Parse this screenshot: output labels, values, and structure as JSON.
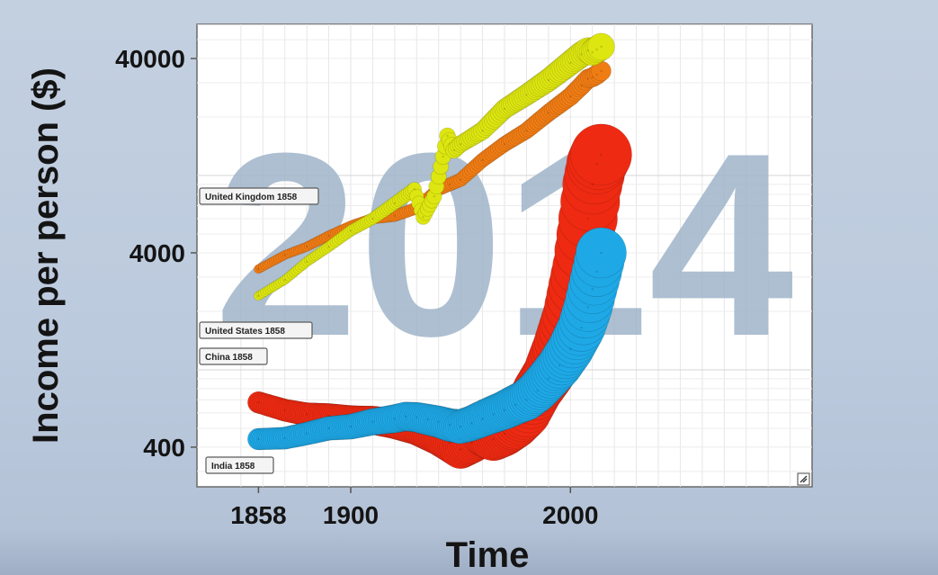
{
  "chart_data": {
    "type": "scatter",
    "title": "",
    "xlabel": "Time",
    "ylabel": "Income per person ($)",
    "yscale": "log",
    "xlim": [
      1830,
      2110
    ],
    "ylim": [
      250,
      60000
    ],
    "x_ticks": [
      {
        "value": 1858,
        "label": "1858"
      },
      {
        "value": 1900,
        "label": "1900"
      },
      {
        "value": 2000,
        "label": "2000"
      }
    ],
    "y_ticks": [
      {
        "value": 400,
        "label": "400"
      },
      {
        "value": 4000,
        "label": "4000"
      },
      {
        "value": 40000,
        "label": "40000"
      }
    ],
    "grid": true,
    "watermark_year": "2014",
    "series": [
      {
        "name": "China",
        "color": "#ee2a12",
        "start_label": "China 1858",
        "points": [
          [
            1858,
            680
          ],
          [
            1870,
            620
          ],
          [
            1880,
            590
          ],
          [
            1890,
            580
          ],
          [
            1900,
            560
          ],
          [
            1910,
            550
          ],
          [
            1920,
            530
          ],
          [
            1930,
            500
          ],
          [
            1940,
            450
          ],
          [
            1945,
            420
          ],
          [
            1950,
            390
          ],
          [
            1955,
            420
          ],
          [
            1960,
            460
          ],
          [
            1965,
            440
          ],
          [
            1970,
            470
          ],
          [
            1975,
            520
          ],
          [
            1980,
            600
          ],
          [
            1985,
            780
          ],
          [
            1990,
            950
          ],
          [
            1995,
            1300
          ],
          [
            2000,
            1900
          ],
          [
            2005,
            3400
          ],
          [
            2008,
            6000
          ],
          [
            2010,
            9000
          ],
          [
            2012,
            11500
          ],
          [
            2014,
            12800
          ]
        ]
      },
      {
        "name": "India",
        "color": "#1ea8e6",
        "start_label": "India 1858",
        "points": [
          [
            1858,
            440
          ],
          [
            1870,
            445
          ],
          [
            1880,
            470
          ],
          [
            1890,
            500
          ],
          [
            1900,
            510
          ],
          [
            1910,
            540
          ],
          [
            1920,
            560
          ],
          [
            1925,
            575
          ],
          [
            1930,
            570
          ],
          [
            1935,
            555
          ],
          [
            1940,
            540
          ],
          [
            1945,
            520
          ],
          [
            1950,
            510
          ],
          [
            1955,
            530
          ],
          [
            1960,
            560
          ],
          [
            1965,
            590
          ],
          [
            1970,
            620
          ],
          [
            1975,
            660
          ],
          [
            1980,
            700
          ],
          [
            1985,
            780
          ],
          [
            1990,
            900
          ],
          [
            1995,
            1050
          ],
          [
            2000,
            1280
          ],
          [
            2005,
            1650
          ],
          [
            2008,
            2100
          ],
          [
            2010,
            2600
          ],
          [
            2012,
            3200
          ],
          [
            2014,
            4000
          ]
        ]
      },
      {
        "name": "United Kingdom",
        "color": "#f07c14",
        "start_label": "United Kingdom 1858",
        "points": [
          [
            1858,
            3300
          ],
          [
            1870,
            3900
          ],
          [
            1880,
            4300
          ],
          [
            1890,
            4900
          ],
          [
            1900,
            5500
          ],
          [
            1910,
            6000
          ],
          [
            1920,
            6200
          ],
          [
            1930,
            6800
          ],
          [
            1940,
            8500
          ],
          [
            1945,
            9000
          ],
          [
            1950,
            9500
          ],
          [
            1960,
            12000
          ],
          [
            1970,
            14500
          ],
          [
            1980,
            17000
          ],
          [
            1990,
            21000
          ],
          [
            2000,
            25500
          ],
          [
            2005,
            29000
          ],
          [
            2008,
            31500
          ],
          [
            2010,
            32000
          ],
          [
            2012,
            33000
          ],
          [
            2014,
            34500
          ]
        ]
      },
      {
        "name": "United States",
        "color": "#dde610",
        "start_label": "United States 1858",
        "points": [
          [
            1858,
            2400
          ],
          [
            1870,
            2900
          ],
          [
            1880,
            3600
          ],
          [
            1890,
            4300
          ],
          [
            1900,
            5200
          ],
          [
            1910,
            6000
          ],
          [
            1920,
            7200
          ],
          [
            1929,
            8500
          ],
          [
            1933,
            6100
          ],
          [
            1938,
            7800
          ],
          [
            1942,
            12500
          ],
          [
            1944,
            16000
          ],
          [
            1947,
            13500
          ],
          [
            1950,
            14500
          ],
          [
            1960,
            17000
          ],
          [
            1970,
            22000
          ],
          [
            1980,
            26000
          ],
          [
            1990,
            31000
          ],
          [
            2000,
            38000
          ],
          [
            2005,
            42000
          ],
          [
            2008,
            44000
          ],
          [
            2010,
            43000
          ],
          [
            2012,
            44500
          ],
          [
            2014,
            46000
          ]
        ]
      }
    ]
  }
}
